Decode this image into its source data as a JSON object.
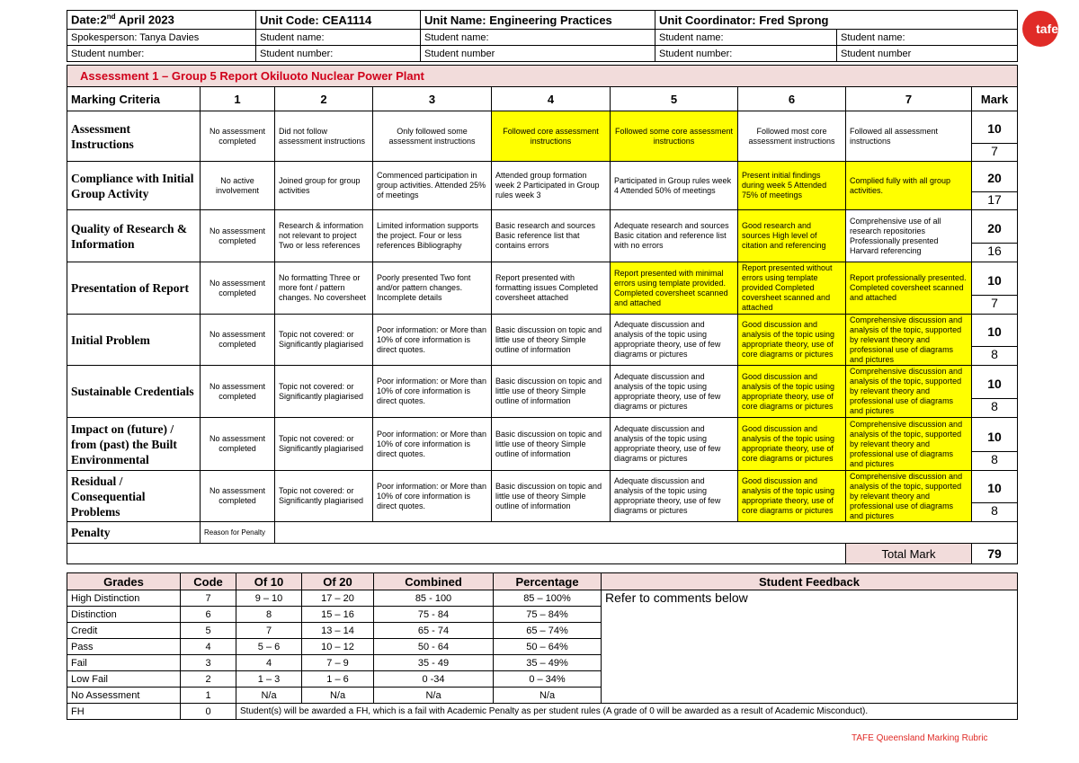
{
  "header": {
    "date_label": "Date:2",
    "date_sup": "nd",
    "date_rest": " April 2023",
    "unit_code": "Unit Code: CEA1114",
    "unit_name": "Unit Name: Engineering Practices",
    "unit_coordinator": "Unit Coordinator: Fred Sprong",
    "row2": [
      "Spokesperson: Tanya Davies",
      "Student name:",
      "Student name:",
      "Student name:",
      "Student name:"
    ],
    "row3": [
      "Student number:",
      "Student number:",
      "Student number",
      "Student number:",
      "Student number"
    ]
  },
  "logo": {
    "text": "tafe",
    "color": "#e02b27"
  },
  "rubric": {
    "title": "Assessment 1 – Group 5 Report Okiluoto Nuclear Power Plant",
    "columns": [
      "Marking Criteria",
      "1",
      "2",
      "3",
      "4",
      "5",
      "6",
      "7",
      "Mark"
    ],
    "highlight_color": "#ffff00",
    "rows": [
      {
        "criterion": "Assessment Instructions",
        "cells": [
          "No assessment completed",
          "Did not follow assessment instructions",
          "Only followed some assessment instructions",
          "Followed core assessment instructions",
          "Followed some core assessment instructions",
          "Followed most core assessment instructions",
          "Followed all assessment instructions"
        ],
        "highlighted": [
          4,
          5
        ],
        "max": "10",
        "score": "7"
      },
      {
        "criterion": "Compliance with Initial Group Activity",
        "cells": [
          "No active involvement",
          "Joined group for group activities",
          "Commenced participation in group activities. Attended 25% of meetings",
          "Attended group formation week 2 Participated in Group rules week 3",
          "Participated in Group rules week 4 Attended 50% of meetings",
          "Present initial findings during week 5 Attended 75% of meetings",
          "Complied fully with all group activities."
        ],
        "highlighted": [
          6,
          7
        ],
        "max": "20",
        "score": "17"
      },
      {
        "criterion": "Quality of Research & Information",
        "cells": [
          "No assessment completed",
          "Research & information not relevant to project Two or less references",
          "Limited information supports the project. Four or less references Bibliography",
          "Basic research and sources Basic reference list that contains errors",
          "Adequate research and sources Basic citation and reference list with no errors",
          "Good research and sources High level of citation and referencing",
          "Comprehensive use of all research repositories Professionally presented Harvard referencing"
        ],
        "highlighted": [
          6
        ],
        "max": "20",
        "score": "16"
      },
      {
        "criterion": "Presentation of Report",
        "cells": [
          "No assessment completed",
          "No formatting Three or more font / pattern changes. No coversheet",
          "Poorly presented Two font and/or pattern changes. Incomplete details",
          "Report presented with formatting issues Completed coversheet attached",
          "Report presented with minimal errors using template provided. Completed coversheet scanned and attached",
          "Report presented without errors using template provided Completed coversheet scanned and attached",
          "Report professionally presented. Completed coversheet scanned and attached"
        ],
        "highlighted": [
          5,
          6,
          7
        ],
        "max": "10",
        "score": "7"
      },
      {
        "criterion": "Initial Problem",
        "cells": [
          "No assessment completed",
          "Topic not covered: or Significantly plagiarised",
          "Poor information: or More than 10% of core information is direct quotes.",
          "Basic discussion on topic and little use of theory Simple outline of information",
          "Adequate discussion and analysis of the topic using appropriate theory, use of few diagrams or pictures",
          "Good discussion and analysis of the topic using appropriate theory, use of core diagrams or pictures",
          "Comprehensive discussion and analysis of the topic, supported by relevant theory and professional use of diagrams and pictures"
        ],
        "highlighted": [
          6,
          7
        ],
        "max": "10",
        "score": "8"
      },
      {
        "criterion": "Sustainable Credentials",
        "cells": [
          "No assessment completed",
          "Topic not covered: or Significantly plagiarised",
          "Poor information: or More than 10% of core information is direct quotes.",
          "Basic discussion on topic and little use of theory Simple outline of information",
          "Adequate discussion and analysis of the topic using appropriate theory, use of few diagrams or pictures",
          "Good discussion and analysis of the topic using appropriate theory, use of core diagrams or pictures",
          "Comprehensive discussion and analysis of the topic, supported by relevant theory and professional use of diagrams and pictures"
        ],
        "highlighted": [
          6,
          7
        ],
        "max": "10",
        "score": "8"
      },
      {
        "criterion": "Impact on (future) / from (past) the Built Environmental",
        "cells": [
          "No assessment completed",
          "Topic not covered: or Significantly plagiarised",
          "Poor information: or More than 10% of core information is direct quotes.",
          "Basic discussion on topic and little use of theory Simple outline of information",
          "Adequate discussion and analysis of the topic using appropriate theory, use of few diagrams or pictures",
          "Good discussion and analysis of the topic using appropriate theory, use of core diagrams or pictures",
          "Comprehensive discussion and analysis of the topic, supported by relevant theory and professional use of diagrams and pictures"
        ],
        "highlighted": [
          6,
          7
        ],
        "max": "10",
        "score": "8"
      },
      {
        "criterion": "Residual / Consequential Problems",
        "cells": [
          "No assessment completed",
          "Topic not covered: or Significantly plagiarised",
          "Poor information: or More than 10% of core information is direct quotes.",
          "Basic discussion on topic and little use of theory Simple outline of information",
          "Adequate discussion and analysis of the topic using appropriate theory, use of few diagrams or pictures",
          "Good discussion and analysis of the topic using appropriate theory, use of core diagrams or pictures",
          "Comprehensive discussion and analysis of the topic, supported by relevant theory and professional use of diagrams and pictures"
        ],
        "highlighted": [
          6,
          7
        ],
        "max": "10",
        "score": "8"
      }
    ],
    "penalty_label": "Penalty",
    "penalty_reason_label": "Reason for Penalty",
    "total_label": "Total Mark",
    "total_value": "79"
  },
  "grades": {
    "headers": [
      "Grades",
      "Code",
      "Of 10",
      "Of 20",
      "Combined",
      "Percentage",
      "Student Feedback"
    ],
    "rows": [
      [
        "High Distinction",
        "7",
        "9 – 10",
        "17 – 20",
        "85 - 100",
        "85 – 100%"
      ],
      [
        "Distinction",
        "6",
        "8",
        "15 – 16",
        "75 - 84",
        "75 – 84%"
      ],
      [
        "Credit",
        "5",
        "7",
        "13 – 14",
        "65 - 74",
        "65 – 74%"
      ],
      [
        "Pass",
        "4",
        "5 – 6",
        "10 – 12",
        "50 - 64",
        "50 – 64%"
      ],
      [
        "Fail",
        "3",
        "4",
        "7 – 9",
        "35 - 49",
        "35 – 49%"
      ],
      [
        "Low Fail",
        "2",
        "1 – 3",
        "1 – 6",
        "0 -34",
        "0 – 34%"
      ],
      [
        "No Assessment",
        "1",
        "N/a",
        "N/a",
        "N/a",
        "N/a"
      ]
    ],
    "feedback": "Refer to comments below",
    "fh": {
      "grade": "FH",
      "code": "0",
      "text": "Student(s) will be awarded a FH, which is a fail with Academic Penalty as per student rules (A grade of 0 will be awarded as a result of Academic Misconduct)."
    }
  },
  "footer": "TAFE Queensland Marking Rubric"
}
